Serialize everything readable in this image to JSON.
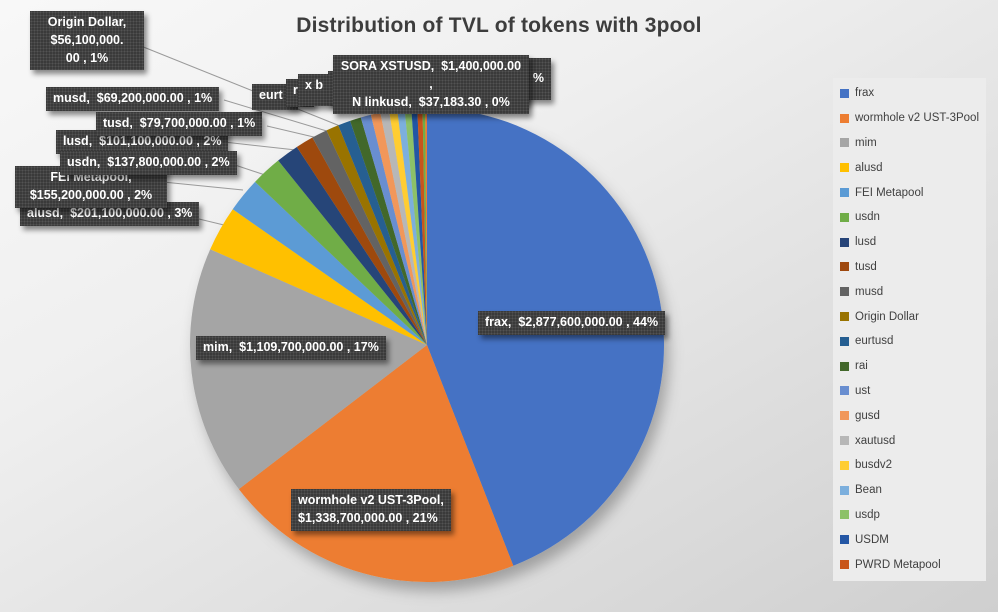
{
  "title": "Distribution of TVL of tokens with 3pool",
  "colors": {
    "accent_blue": "#4472C4",
    "accent_orange": "#ED7D31",
    "label_box_bg": "#3a3a3a",
    "label_text": "#ffffff",
    "leader_line": "#9a9a9a",
    "title_color": "#3d3d3d",
    "legend_bg": "#ececec",
    "legend_text": "#404040"
  },
  "chart_data": {
    "type": "pie",
    "title": "Distribution of TVL of tokens with 3pool",
    "unit": "USD",
    "legend_position": "right",
    "start_angle_deg": 0,
    "direction": "clockwise",
    "slices": [
      {
        "name": "frax",
        "value": 2877600000.0,
        "pct_label": "44%",
        "color": "#4472C4",
        "render_pct": 44.0
      },
      {
        "name": "wormhole v2 UST-3Pool",
        "value": 1338700000.0,
        "pct_label": "21%",
        "color": "#ED7D31",
        "render_pct": 20.5
      },
      {
        "name": "mim",
        "value": 1109700000.0,
        "pct_label": "17%",
        "color": "#A5A5A5",
        "render_pct": 17.0
      },
      {
        "name": "alusd",
        "value": 201100000.0,
        "pct_label": "3%",
        "color": "#FFC000",
        "render_pct": 3.08
      },
      {
        "name": "FEI Metapool",
        "value": 155200000.0,
        "pct_label": "2%",
        "color": "#5B9BD5",
        "render_pct": 2.37
      },
      {
        "name": "usdn",
        "value": 137800000.0,
        "pct_label": "2%",
        "color": "#70AD47",
        "render_pct": 2.11
      },
      {
        "name": "lusd",
        "value": 101100000.0,
        "pct_label": "2%",
        "color": "#264478",
        "render_pct": 1.55
      },
      {
        "name": "tusd",
        "value": 79700000.0,
        "pct_label": "1%",
        "color": "#9E480E",
        "render_pct": 1.22
      },
      {
        "name": "musd",
        "value": 69200000.0,
        "pct_label": "1%",
        "color": "#636363",
        "render_pct": 1.06
      },
      {
        "name": "Origin Dollar",
        "value": 56100000.0,
        "pct_label": "1%",
        "color": "#997300",
        "render_pct": 0.86
      },
      {
        "name": "eurtusd",
        "value": null,
        "pct_label": null,
        "color": "#255E91",
        "render_pct": 0.85
      },
      {
        "name": "rai",
        "value": null,
        "pct_label": null,
        "color": "#43682B",
        "render_pct": 0.75
      },
      {
        "name": "ust",
        "value": null,
        "pct_label": null,
        "color": "#698ED0",
        "render_pct": 0.7
      },
      {
        "name": "gusd",
        "value": null,
        "pct_label": null,
        "color": "#F1975A",
        "render_pct": 0.65
      },
      {
        "name": "xautusd",
        "value": null,
        "pct_label": null,
        "color": "#B7B7B7",
        "render_pct": 0.6
      },
      {
        "name": "busdv2",
        "value": null,
        "pct_label": null,
        "color": "#FFCD33",
        "render_pct": 0.55
      },
      {
        "name": "Bean",
        "value": null,
        "pct_label": null,
        "color": "#7CAFDD",
        "render_pct": 0.5
      },
      {
        "name": "usdp",
        "value": null,
        "pct_label": null,
        "color": "#8CC168",
        "render_pct": 0.45
      },
      {
        "name": "USDM",
        "value": null,
        "pct_label": null,
        "color": "#2457A5",
        "render_pct": 0.4
      },
      {
        "name": "PWRD Metapool",
        "value": null,
        "pct_label": null,
        "color": "#C8551A",
        "render_pct": 0.35
      },
      {
        "name": "SORA XSTUSD",
        "value": 1400000.0,
        "pct_label": "0%",
        "color": "#70AD47",
        "render_pct": 0.18
      },
      {
        "name": "linkusd",
        "value": 37183.3,
        "pct_label": "0%",
        "color": "#ED7D31",
        "render_pct": 0.12
      }
    ]
  },
  "callouts": {
    "origin_dollar": {
      "text": "Origin Dollar,\n$56,100,000.\n00 , 1%"
    },
    "musd": {
      "text": "musd,  $69,200,000.00 , 1%"
    },
    "tusd": {
      "text": "tusd,  $79,700,000.00 , 1%"
    },
    "lusd": {
      "text": "lusd,  $101,100,000.00 , 2%"
    },
    "usdn": {
      "text": "usdn,  $137,800,000.00 , 2%"
    },
    "fei": {
      "text": "FEI Metapool,\n$155,200,000.00 , 2%"
    },
    "alusd": {
      "text": "alusd,  $201,100,000.00 , 3%"
    },
    "mim": {
      "text": "mim,  $1,109,700,000.00 , 17%"
    },
    "frax": {
      "text": "frax,  $2,877,600,000.00 , 44%"
    },
    "wormhole": {
      "text": "wormhole v2 UST-3Pool,\n$1,338,700,000.00 , 21%"
    },
    "sora_linkusd": {
      "text": "SORA XSTUSD,  $1,400,000.00 ,\nN linkusd,  $37,183.30 , 0%"
    },
    "zero_pct": {
      "text": "0%"
    },
    "fragments": {
      "eurt": "eurt",
      "r": "r",
      "xb": "x b",
      "e": "E",
      "pct": "%"
    }
  }
}
